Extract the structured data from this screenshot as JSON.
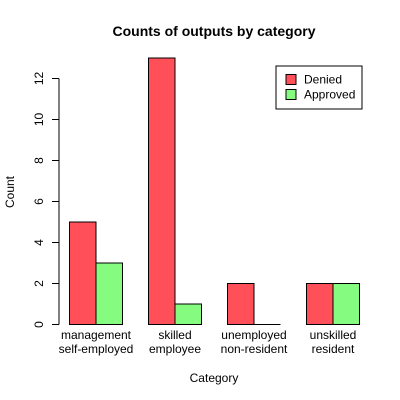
{
  "chart_data": {
    "type": "bar",
    "title": "Counts of outputs by category",
    "xlabel": "Category",
    "ylabel": "Count",
    "categories": [
      [
        "management",
        "self-employed"
      ],
      [
        "skilled",
        "employee"
      ],
      [
        "unemployed",
        "non-resident"
      ],
      [
        "unskilled",
        "resident"
      ]
    ],
    "series": [
      {
        "name": "Denied",
        "color": "#ff5059",
        "values": [
          5,
          13,
          2,
          2
        ]
      },
      {
        "name": "Approved",
        "color": "#85fb7f",
        "values": [
          3,
          1,
          0,
          2
        ]
      }
    ],
    "ylim": [
      0,
      13
    ],
    "yticks": [
      0,
      2,
      4,
      6,
      8,
      10,
      12
    ],
    "legend": {
      "position": "top-right"
    },
    "grid": false
  }
}
